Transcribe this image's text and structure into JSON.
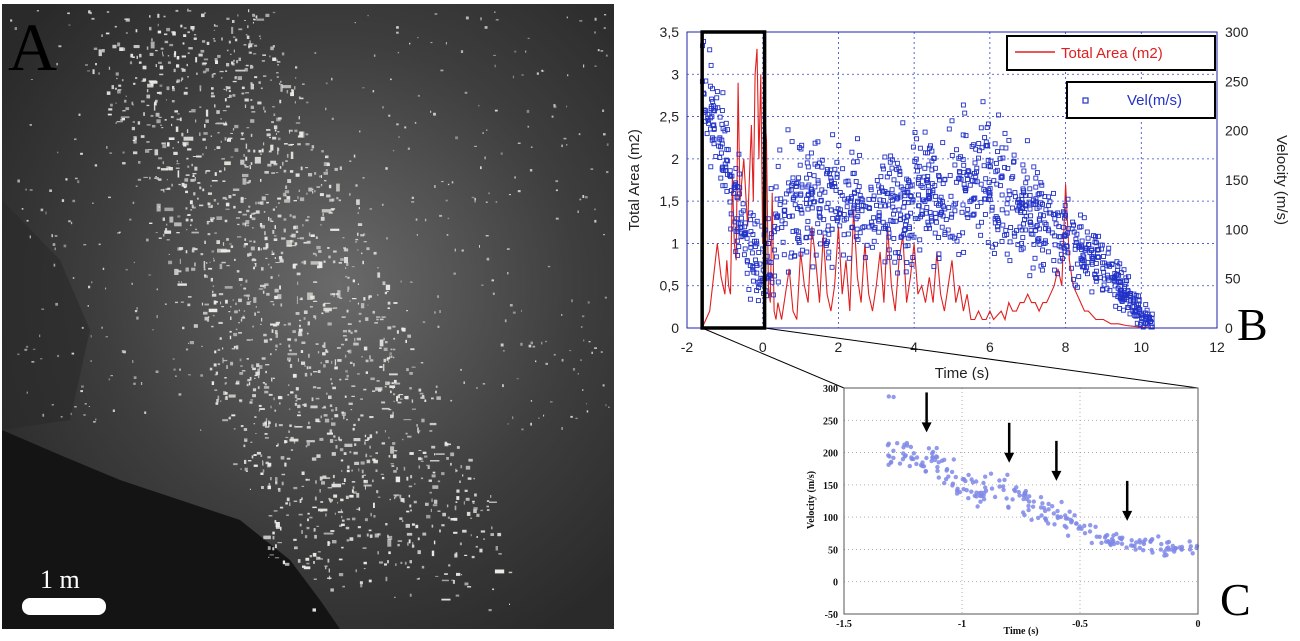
{
  "panel_a": {
    "letter": "A",
    "scale_bar_label": "1 m",
    "colors": {
      "background": "#3a3a3a",
      "dark_region": "#141414",
      "particles": "#ecebe6"
    }
  },
  "chart_data": [
    {
      "panel": "B",
      "type": "line+scatter",
      "xlabel": "Time (s)",
      "ylabel": "Total Area (m2)",
      "y2label": "Velocity (m/s)",
      "xlim": [
        -2,
        12
      ],
      "ylim": [
        0,
        3.5
      ],
      "y2lim": [
        0,
        300
      ],
      "xticks": [
        "-2",
        "0",
        "2",
        "4",
        "6",
        "8",
        "10",
        "12"
      ],
      "yticks": [
        "0",
        "0,5",
        "1",
        "1,5",
        "2",
        "2,5",
        "3",
        "3,5"
      ],
      "y2ticks": [
        "0",
        "50",
        "100",
        "150",
        "200",
        "250",
        "300"
      ],
      "grid": true,
      "legend_placement": "top-right",
      "highlight_box": {
        "x": [
          -1.6,
          0.05
        ],
        "y": [
          0,
          3.5
        ]
      },
      "series": [
        {
          "name": "Total Area (m2)",
          "kind": "line",
          "axis": "left",
          "color": "#e02020",
          "x": [
            -1.6,
            -1.5,
            -1.4,
            -1.3,
            -1.2,
            -1.1,
            -1.0,
            -0.95,
            -0.9,
            -0.85,
            -0.8,
            -0.75,
            -0.7,
            -0.65,
            -0.6,
            -0.5,
            -0.4,
            -0.3,
            -0.25,
            -0.2,
            -0.15,
            -0.1,
            -0.05,
            0.0,
            0.05,
            0.1,
            0.15,
            0.2,
            0.25,
            0.3,
            0.35,
            0.4,
            0.5,
            0.6,
            0.7,
            0.8,
            0.9,
            1.0,
            1.1,
            1.2,
            1.3,
            1.4,
            1.5,
            1.6,
            1.7,
            1.8,
            1.9,
            2.0,
            2.1,
            2.2,
            2.3,
            2.4,
            2.5,
            2.6,
            2.7,
            2.8,
            2.9,
            3.0,
            3.1,
            3.2,
            3.3,
            3.4,
            3.5,
            3.6,
            3.7,
            3.8,
            3.9,
            4.0,
            4.1,
            4.2,
            4.3,
            4.4,
            4.5,
            4.6,
            4.7,
            4.8,
            4.9,
            5.0,
            5.1,
            5.2,
            5.3,
            5.4,
            5.5,
            5.6,
            5.7,
            5.8,
            5.9,
            6.0,
            6.1,
            6.2,
            6.3,
            6.4,
            6.5,
            6.6,
            6.7,
            6.8,
            6.9,
            7.0,
            7.1,
            7.2,
            7.3,
            7.4,
            7.5,
            7.6,
            7.7,
            7.8,
            7.9,
            8.0,
            8.1,
            8.2,
            8.3,
            8.4,
            8.5,
            8.6,
            8.7,
            8.8,
            8.9,
            9.0,
            9.2,
            9.4,
            9.6,
            9.8,
            10.0,
            10.3
          ],
          "y": [
            0,
            0.1,
            0.2,
            0.6,
            1.0,
            0.6,
            0.4,
            0.8,
            0.5,
            0.4,
            1.8,
            1.0,
            0.8,
            2.9,
            1.5,
            2.0,
            1.2,
            2.4,
            1.5,
            3.0,
            3.3,
            2.0,
            3.0,
            1.0,
            2.6,
            2.2,
            0.5,
            0.3,
            1.6,
            0.2,
            0.1,
            0.3,
            0.1,
            0.4,
            0.7,
            0.2,
            0.1,
            0.9,
            0.5,
            0.3,
            1.2,
            0.8,
            0.3,
            1.1,
            0.4,
            0.2,
            0.5,
            1.2,
            0.4,
            0.8,
            0.2,
            1.4,
            0.6,
            0.3,
            1.0,
            0.4,
            0.2,
            0.5,
            0.9,
            0.3,
            1.2,
            0.5,
            0.2,
            0.8,
            1.1,
            0.3,
            0.6,
            1.0,
            0.4,
            0.5,
            0.3,
            0.6,
            0.3,
            0.9,
            0.4,
            0.2,
            0.5,
            0.8,
            0.3,
            0.5,
            0.2,
            0.4,
            0.1,
            0.1,
            0.2,
            0.1,
            0.1,
            0.2,
            0.1,
            0.15,
            0.2,
            0.1,
            0.3,
            0.2,
            0.2,
            0.3,
            0.3,
            0.4,
            0.3,
            0.3,
            0.2,
            0.3,
            0.3,
            0.4,
            0.5,
            0.7,
            0.5,
            1.7,
            0.8,
            0.5,
            0.4,
            0.3,
            0.2,
            0.2,
            0.15,
            0.1,
            0.1,
            0.1,
            0.05,
            0.05,
            0.03,
            0.02,
            0.01,
            0
          ]
        },
        {
          "name": "Vel(m/s)",
          "kind": "scatter",
          "axis": "right",
          "color": "#2232c8",
          "trend": {
            "x": [
              -1.6,
              -1.3,
              -1.0,
              -0.7,
              -0.4,
              -0.1,
              0.0,
              0.5,
              1.0,
              2.0,
              3.0,
              4.0,
              5.0,
              5.5,
              6.0,
              6.5,
              7.0,
              7.5,
              8.0,
              8.5,
              9.0,
              9.5,
              10.0,
              10.3
            ],
            "v": [
              250,
              210,
              170,
              130,
              90,
              60,
              55,
              120,
              130,
              125,
              120,
              125,
              135,
              160,
              150,
              140,
              120,
              105,
              90,
              80,
              65,
              40,
              15,
              5
            ],
            "spread": [
              30,
              35,
              40,
              40,
              35,
              30,
              30,
              45,
              45,
              45,
              45,
              45,
              45,
              50,
              50,
              45,
              40,
              35,
              30,
              25,
              20,
              15,
              10,
              5
            ]
          },
          "outliers": [
            {
              "x": -1.4,
              "v": 282
            },
            {
              "x": -1.35,
              "v": 232
            },
            {
              "x": 5.3,
              "v": 226
            },
            {
              "x": 5.0,
              "v": 210
            },
            {
              "x": 3.7,
              "v": 208
            }
          ]
        }
      ]
    },
    {
      "panel": "C",
      "type": "scatter",
      "xlabel": "Time (s)",
      "ylabel": "Velocity (m/s)",
      "xlim": [
        -1.5,
        0
      ],
      "ylim": [
        -50,
        300
      ],
      "xticks": [
        "-1.5",
        "-1",
        "-0.5",
        "0"
      ],
      "yticks": [
        "-50",
        "0",
        "50",
        "100",
        "150",
        "200",
        "250",
        "300"
      ],
      "grid": true,
      "color": "#7f88e8",
      "arrows_x": [
        -1.15,
        -0.8,
        -0.6,
        -0.3
      ],
      "arrows_tip_v": [
        225,
        178,
        150,
        88
      ],
      "trend": {
        "x": [
          -1.32,
          -1.2,
          -1.1,
          -1.0,
          -0.9,
          -0.8,
          -0.7,
          -0.6,
          -0.5,
          -0.4,
          -0.3,
          -0.2,
          -0.1,
          0.0
        ],
        "v": [
          200,
          195,
          185,
          150,
          135,
          145,
          110,
          105,
          85,
          65,
          62,
          58,
          52,
          48
        ],
        "spread": [
          12,
          18,
          20,
          20,
          20,
          22,
          20,
          18,
          15,
          12,
          12,
          10,
          10,
          10
        ]
      },
      "outliers": [
        {
          "x": -1.31,
          "v": 287
        },
        {
          "x": -1.29,
          "v": 286
        }
      ]
    }
  ]
}
